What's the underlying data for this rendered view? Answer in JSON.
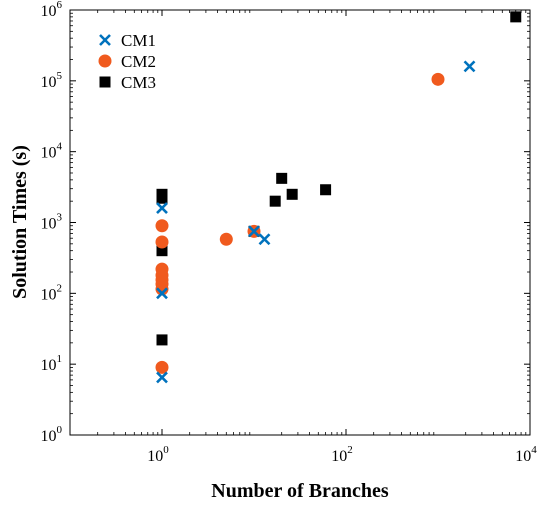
{
  "chart_data": {
    "type": "scatter",
    "xlabel": "Number of Branches",
    "ylabel": "Solution Times (s)",
    "xscale": "log",
    "yscale": "log",
    "xlim": [
      0.1,
      10000
    ],
    "ylim": [
      1,
      1000000
    ],
    "xticks": [
      {
        "value": 1,
        "base": "10",
        "exp": "0"
      },
      {
        "value": 100,
        "base": "10",
        "exp": "2"
      },
      {
        "value": 10000,
        "base": "10",
        "exp": "4"
      }
    ],
    "yticks": [
      {
        "value": 1,
        "base": "10",
        "exp": "0"
      },
      {
        "value": 10,
        "base": "10",
        "exp": "1"
      },
      {
        "value": 100,
        "base": "10",
        "exp": "2"
      },
      {
        "value": 1000,
        "base": "10",
        "exp": "3"
      },
      {
        "value": 10000,
        "base": "10",
        "exp": "4"
      },
      {
        "value": 100000,
        "base": "10",
        "exp": "5"
      },
      {
        "value": 1000000,
        "base": "10",
        "exp": "6"
      }
    ],
    "grid": false,
    "legend_position": "top-left",
    "series": [
      {
        "name": "CM1",
        "marker": "x",
        "color": "#0072BD",
        "points": [
          {
            "x": 1,
            "y": 6.5
          },
          {
            "x": 1,
            "y": 100
          },
          {
            "x": 1,
            "y": 1600
          },
          {
            "x": 10,
            "y": 750
          },
          {
            "x": 13,
            "y": 580
          },
          {
            "x": 2200,
            "y": 160000
          }
        ]
      },
      {
        "name": "CM2",
        "marker": "circle",
        "color": "#F05A1E",
        "points": [
          {
            "x": 1,
            "y": 9
          },
          {
            "x": 1,
            "y": 115
          },
          {
            "x": 1,
            "y": 135
          },
          {
            "x": 1,
            "y": 155
          },
          {
            "x": 1,
            "y": 180
          },
          {
            "x": 1,
            "y": 220
          },
          {
            "x": 1,
            "y": 530
          },
          {
            "x": 1,
            "y": 900
          },
          {
            "x": 5,
            "y": 580
          },
          {
            "x": 10,
            "y": 750
          },
          {
            "x": 1000,
            "y": 105000
          }
        ]
      },
      {
        "name": "CM3",
        "marker": "square",
        "color": "#000000",
        "points": [
          {
            "x": 1,
            "y": 22
          },
          {
            "x": 1,
            "y": 400
          },
          {
            "x": 1,
            "y": 2200
          },
          {
            "x": 1,
            "y": 2500
          },
          {
            "x": 10,
            "y": 750
          },
          {
            "x": 17,
            "y": 2000
          },
          {
            "x": 20,
            "y": 4200
          },
          {
            "x": 26,
            "y": 2500
          },
          {
            "x": 60,
            "y": 2900
          },
          {
            "x": 7000,
            "y": 800000
          }
        ]
      }
    ]
  }
}
